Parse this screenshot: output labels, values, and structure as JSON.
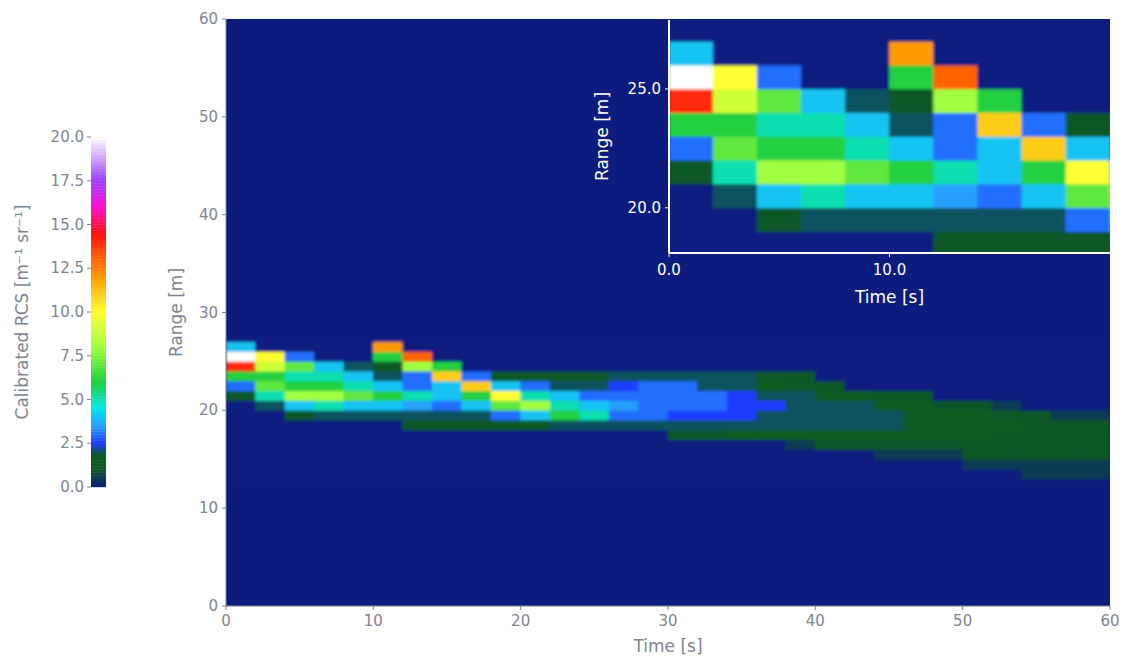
{
  "chart_data": {
    "type": "heatmap",
    "xlabel": "Time [s]",
    "ylabel": "Range [m]",
    "xlim": [
      0,
      60
    ],
    "ylim": [
      0,
      60
    ],
    "xticks": [
      0,
      10,
      20,
      30,
      40,
      50,
      60
    ],
    "yticks": [
      0,
      10,
      20,
      30,
      40,
      50,
      60
    ],
    "xbins": [
      0,
      2,
      4,
      6,
      8,
      10,
      12,
      14,
      16,
      18,
      20,
      22,
      24,
      26,
      28,
      30,
      32,
      34,
      36,
      38,
      40,
      42,
      44,
      46,
      48,
      50,
      52,
      54,
      56,
      58,
      60
    ],
    "ybins": [
      12,
      13,
      14,
      15,
      16,
      17,
      18,
      19,
      20,
      21,
      22,
      23,
      24,
      25,
      26,
      27,
      28
    ],
    "z": [
      [
        0,
        0,
        0,
        0,
        0,
        0,
        0,
        0,
        0,
        0,
        0,
        0,
        0,
        0,
        0,
        0,
        0,
        0,
        0,
        0,
        0,
        0,
        0,
        0,
        0,
        0,
        0,
        0,
        0,
        0
      ],
      [
        0,
        0,
        0,
        0,
        0,
        0,
        0,
        0,
        0,
        0,
        0,
        0,
        0,
        0,
        0,
        0,
        0,
        0,
        0,
        0,
        0,
        0,
        0,
        0,
        0,
        0,
        0,
        0.5,
        0.5,
        0.5
      ],
      [
        0,
        0,
        0,
        0,
        0,
        0,
        0,
        0,
        0,
        0,
        0,
        0,
        0,
        0,
        0,
        0,
        0,
        0,
        0,
        0,
        0,
        0,
        0,
        0,
        0,
        0.5,
        0.5,
        0.5,
        0.5,
        0.5
      ],
      [
        0,
        0,
        0,
        0,
        0,
        0,
        0,
        0,
        0,
        0,
        0,
        0,
        0,
        0,
        0,
        0,
        0,
        0,
        0,
        0,
        0,
        0,
        0.5,
        0.5,
        0.5,
        1,
        1,
        1,
        1,
        1
      ],
      [
        0,
        0,
        0,
        0,
        0,
        0,
        0,
        0,
        0,
        0,
        0,
        0,
        0,
        0,
        0,
        0,
        0,
        0,
        0,
        0.5,
        1,
        1,
        1,
        1,
        1,
        1,
        1,
        1,
        1,
        1
      ],
      [
        0,
        0,
        0,
        0,
        0,
        0,
        0,
        0,
        0,
        0,
        0,
        0,
        0,
        0,
        0,
        1,
        1,
        1.5,
        1.5,
        1.5,
        1.5,
        1.5,
        1.5,
        1.5,
        1.5,
        1.5,
        1,
        1,
        1,
        1
      ],
      [
        0,
        0,
        0,
        0,
        0,
        0,
        1,
        1,
        1,
        1,
        1.5,
        2,
        2,
        2,
        2,
        2,
        2,
        2,
        2,
        2,
        2,
        2,
        2,
        1.5,
        1.5,
        1.5,
        1.5,
        1,
        1,
        1
      ],
      [
        0,
        0,
        1,
        2,
        2,
        2,
        2,
        2,
        2,
        3,
        4,
        6,
        5,
        3,
        3,
        2.5,
        2.5,
        2.5,
        2,
        2,
        2,
        2,
        2,
        1.5,
        1.5,
        1.5,
        1,
        1,
        0.5,
        0.5
      ],
      [
        0,
        2,
        4,
        5,
        4,
        4,
        3.5,
        3,
        4,
        7,
        8,
        5,
        4,
        3.5,
        3,
        3,
        3,
        2.5,
        2.5,
        2,
        2,
        2,
        1.5,
        1.5,
        1,
        1,
        0.5,
        0,
        0,
        0
      ],
      [
        1,
        5,
        8,
        8,
        7,
        6,
        5,
        4,
        6,
        10,
        5,
        4,
        3,
        3,
        3,
        3,
        3,
        2.5,
        2,
        2,
        1.5,
        1.5,
        1,
        1,
        0,
        0,
        0,
        0,
        0,
        0
      ],
      [
        3,
        7,
        6,
        6,
        5,
        4,
        3,
        4,
        11,
        4,
        3,
        2,
        2,
        2.5,
        3,
        3,
        2,
        2,
        1.5,
        1,
        1,
        0,
        0,
        0,
        0,
        0,
        0,
        0,
        0,
        0
      ],
      [
        6,
        6,
        5,
        5,
        4,
        2,
        3,
        11,
        3,
        1,
        1,
        1,
        1,
        2,
        2,
        2,
        2,
        2,
        1,
        1,
        0,
        0,
        0,
        0,
        0,
        0,
        0,
        0,
        0,
        0
      ],
      [
        14,
        9,
        7,
        4,
        2,
        1,
        8,
        6,
        0,
        0,
        0,
        0,
        0,
        0,
        0,
        0,
        0,
        0,
        0,
        0,
        0,
        0,
        0,
        0,
        0,
        0,
        0,
        0,
        0,
        0
      ],
      [
        20,
        10,
        3,
        0,
        0,
        6,
        13,
        0,
        0,
        0,
        0,
        0,
        0,
        0,
        0,
        0,
        0,
        0,
        0,
        0,
        0,
        0,
        0,
        0,
        0,
        0,
        0,
        0,
        0,
        0
      ],
      [
        4,
        0,
        0,
        0,
        0,
        12,
        0,
        0,
        0,
        0,
        0,
        0,
        0,
        0,
        0,
        0,
        0,
        0,
        0,
        0,
        0,
        0,
        0,
        0,
        0,
        0,
        0,
        0,
        0,
        0
      ],
      [
        0,
        0,
        0,
        0,
        0,
        0,
        0,
        0,
        0,
        0,
        0,
        0,
        0,
        0,
        0,
        0,
        0,
        0,
        0,
        0,
        0,
        0,
        0,
        0,
        0,
        0,
        0,
        0,
        0,
        0
      ]
    ],
    "colorbar": {
      "label": "Calibrated RCS [m⁻¹ sr⁻¹]",
      "range": [
        0,
        20
      ],
      "ticks": [
        {
          "value": 0,
          "label": "0.0"
        },
        {
          "value": 2.5,
          "label": "2.5"
        },
        {
          "value": 5,
          "label": "5.0"
        },
        {
          "value": 7.5,
          "label": "7.5"
        },
        {
          "value": 10,
          "label": "10.0"
        },
        {
          "value": 12.5,
          "label": "12.5"
        },
        {
          "value": 15,
          "label": "15.0"
        },
        {
          "value": 17.5,
          "label": "17.5"
        },
        {
          "value": 20,
          "label": "20.0"
        }
      ]
    },
    "inset": {
      "xlabel": "Time [s]",
      "ylabel": "Range [m]",
      "xlim": [
        0,
        20
      ],
      "ylim": [
        18.1,
        27.9
      ],
      "xticks": [
        {
          "value": 0,
          "label": "0.0"
        },
        {
          "value": 10,
          "label": "10.0"
        }
      ],
      "yticks": [
        {
          "value": 20,
          "label": "20.0"
        },
        {
          "value": 25,
          "label": "25.0"
        }
      ]
    }
  }
}
